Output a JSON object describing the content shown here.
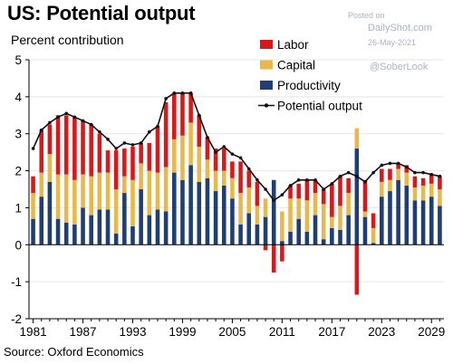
{
  "header": {
    "title": "US: Potential output",
    "ylabel": "Percent contribution",
    "source": "Source: Oxford Economics"
  },
  "watermark": {
    "posted_on": "Posted on",
    "brand": "DailyShot.com",
    "date": "26-May-2021",
    "handle": "@SoberLook"
  },
  "colors": {
    "labor": "#d7191c",
    "capital": "#e8b84a",
    "productivity": "#1f3f73",
    "line": "#111111",
    "grid": "#e6e6e6"
  },
  "chart_data": {
    "type": "bar",
    "subtype": "stacked bar with line",
    "title": "US: Potential output",
    "ylabel": "Percent contribution",
    "ylim": [
      -2,
      5
    ],
    "yticks": [
      "-2",
      "-1",
      "0",
      "1",
      "2",
      "3",
      "4",
      "5"
    ],
    "xtick_labels": [
      "1981",
      "1987",
      "1993",
      "1999",
      "2005",
      "2011",
      "2017",
      "2023",
      "2029"
    ],
    "legend": {
      "position": "top-right",
      "entries": [
        "Labor",
        "Capital",
        "Productivity",
        "Potential output"
      ]
    },
    "categories": [
      1981,
      1982,
      1983,
      1984,
      1985,
      1986,
      1987,
      1988,
      1989,
      1990,
      1991,
      1992,
      1993,
      1994,
      1995,
      1996,
      1997,
      1998,
      1999,
      2000,
      2001,
      2002,
      2003,
      2004,
      2005,
      2006,
      2007,
      2008,
      2009,
      2010,
      2011,
      2012,
      2013,
      2014,
      2015,
      2016,
      2017,
      2018,
      2019,
      2020,
      2021,
      2022,
      2023,
      2024,
      2025,
      2026,
      2027,
      2028,
      2029,
      2030
    ],
    "series": [
      {
        "name": "Productivity",
        "values": [
          0.7,
          1.3,
          1.7,
          0.7,
          0.6,
          0.55,
          1.0,
          0.8,
          0.95,
          0.95,
          0.3,
          1.4,
          0.5,
          1.5,
          0.8,
          0.95,
          0.9,
          1.95,
          1.75,
          2.15,
          1.7,
          1.8,
          1.45,
          1.6,
          1.25,
          0.55,
          0.85,
          0.55,
          0.75,
          1.75,
          0.1,
          0.35,
          0.7,
          0.35,
          0.8,
          0.15,
          0.45,
          0.4,
          0.8,
          2.6,
          0.75,
          0.05,
          1.3,
          1.45,
          1.75,
          1.6,
          1.2,
          1.2,
          1.3,
          1.05
        ]
      },
      {
        "name": "Capital",
        "values": [
          0.7,
          0.65,
          0.75,
          1.2,
          1.3,
          1.2,
          0.9,
          1.05,
          1.0,
          1.0,
          1.2,
          0.45,
          1.25,
          0.7,
          1.2,
          1.0,
          1.2,
          0.9,
          1.2,
          1.15,
          0.95,
          0.5,
          0.55,
          0.4,
          0.55,
          0.85,
          0.7,
          0.5,
          0.5,
          0.0,
          0.8,
          0.9,
          0.55,
          0.85,
          0.6,
          0.95,
          0.3,
          0.65,
          0.6,
          0.55,
          0.15,
          0.4,
          0.4,
          0.3,
          0.3,
          0.35,
          0.35,
          0.4,
          0.35,
          0.45
        ]
      },
      {
        "name": "Labor",
        "values": [
          0.45,
          1.15,
          0.8,
          1.6,
          1.6,
          1.7,
          1.45,
          1.4,
          1.05,
          0.6,
          1.05,
          0.75,
          0.9,
          0.55,
          0.75,
          1.25,
          1.75,
          1.25,
          1.15,
          0.8,
          0.85,
          0.6,
          0.6,
          0.6,
          0.45,
          0.85,
          0.45,
          0.65,
          -0.15,
          -0.75,
          -0.45,
          0.35,
          0.4,
          0.55,
          0.35,
          0.4,
          0.9,
          0.8,
          0.4,
          -1.35,
          0.85,
          0.4,
          0.35,
          0.3,
          0.15,
          0.2,
          0.3,
          0.2,
          0.25,
          0.35
        ]
      },
      {
        "name": "Potential output",
        "values": [
          2.6,
          3.1,
          3.3,
          3.45,
          3.55,
          3.45,
          3.35,
          3.25,
          3.05,
          2.85,
          2.6,
          2.75,
          2.7,
          2.75,
          3.05,
          3.2,
          3.95,
          4.1,
          4.1,
          4.1,
          3.5,
          2.9,
          2.5,
          2.65,
          2.45,
          2.35,
          2.05,
          1.75,
          1.5,
          1.2,
          1.35,
          1.6,
          1.75,
          1.75,
          1.75,
          1.5,
          1.65,
          1.85,
          1.95,
          1.85,
          1.7,
          1.95,
          2.15,
          2.2,
          2.2,
          2.1,
          1.95,
          1.95,
          1.9,
          1.85
        ]
      }
    ]
  }
}
